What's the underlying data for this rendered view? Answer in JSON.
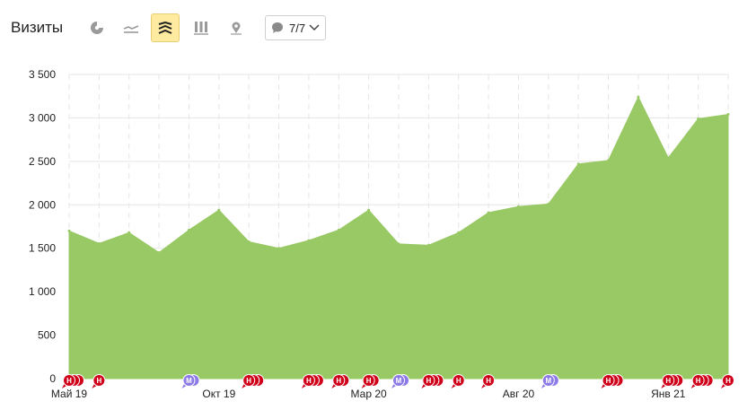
{
  "header": {
    "title": "Визиты",
    "tools": [
      {
        "name": "pie-chart-icon",
        "active": false
      },
      {
        "name": "line-chart-icon",
        "active": false
      },
      {
        "name": "area-chart-icon",
        "active": true
      },
      {
        "name": "bar-chart-icon",
        "active": false
      },
      {
        "name": "map-icon",
        "active": false
      }
    ],
    "filter": {
      "icon": "comment-icon",
      "label": "7/7"
    }
  },
  "colors": {
    "area": "#98c964",
    "grid": "#e5e5e5",
    "annotation_red": "#d0021b",
    "annotation_purple": "#8c7ae6"
  },
  "chart_data": {
    "type": "area",
    "title": "Визиты",
    "xlabel": "",
    "ylabel": "",
    "ylim": [
      0,
      3500
    ],
    "y_ticks": [
      "0",
      "500",
      "1 000",
      "1 500",
      "2 000",
      "2 500",
      "3 000",
      "3 500"
    ],
    "x": [
      "2019-05",
      "2019-06",
      "2019-07",
      "2019-08",
      "2019-09",
      "2019-10",
      "2019-11",
      "2019-12",
      "2020-01",
      "2020-02",
      "2020-03",
      "2020-04",
      "2020-05",
      "2020-06",
      "2020-07",
      "2020-08",
      "2020-09",
      "2020-10",
      "2020-11",
      "2020-12",
      "2021-01",
      "2021-02",
      "2021-03"
    ],
    "x_tick_labels": [
      {
        "index": 0,
        "label": "Май 19"
      },
      {
        "index": 5,
        "label": "Окт 19"
      },
      {
        "index": 10,
        "label": "Мар 20"
      },
      {
        "index": 15,
        "label": "Авг 20"
      },
      {
        "index": 20,
        "label": "Янв 21"
      }
    ],
    "values": [
      1700,
      1555,
      1680,
      1450,
      1710,
      1940,
      1575,
      1500,
      1590,
      1710,
      1940,
      1550,
      1535,
      1680,
      1910,
      1980,
      2010,
      2470,
      2510,
      3240,
      2540,
      2990,
      3040
    ],
    "grid": true,
    "annotations": [
      {
        "index": 0,
        "letter": "Н",
        "color": "red",
        "count": 3
      },
      {
        "index": 1,
        "letter": "Н",
        "color": "red",
        "count": 1
      },
      {
        "index": 4,
        "letter": "М",
        "color": "purple",
        "count": 2
      },
      {
        "index": 6,
        "letter": "Н",
        "color": "red",
        "count": 3
      },
      {
        "index": 8,
        "letter": "Н",
        "color": "red",
        "count": 3
      },
      {
        "index": 9,
        "letter": "Н",
        "color": "red",
        "count": 2
      },
      {
        "index": 10,
        "letter": "Н",
        "color": "red",
        "count": 2
      },
      {
        "index": 11,
        "letter": "М",
        "color": "purple",
        "count": 2
      },
      {
        "index": 12,
        "letter": "Н",
        "color": "red",
        "count": 3
      },
      {
        "index": 13,
        "letter": "Н",
        "color": "red",
        "count": 1
      },
      {
        "index": 14,
        "letter": "Н",
        "color": "red",
        "count": 1
      },
      {
        "index": 16,
        "letter": "М",
        "color": "purple",
        "count": 2
      },
      {
        "index": 18,
        "letter": "Н",
        "color": "red",
        "count": 3
      },
      {
        "index": 20,
        "letter": "Н",
        "color": "red",
        "count": 3
      },
      {
        "index": 21,
        "letter": "Н",
        "color": "red",
        "count": 3
      },
      {
        "index": 22,
        "letter": "Н",
        "color": "red",
        "count": 1
      }
    ]
  }
}
